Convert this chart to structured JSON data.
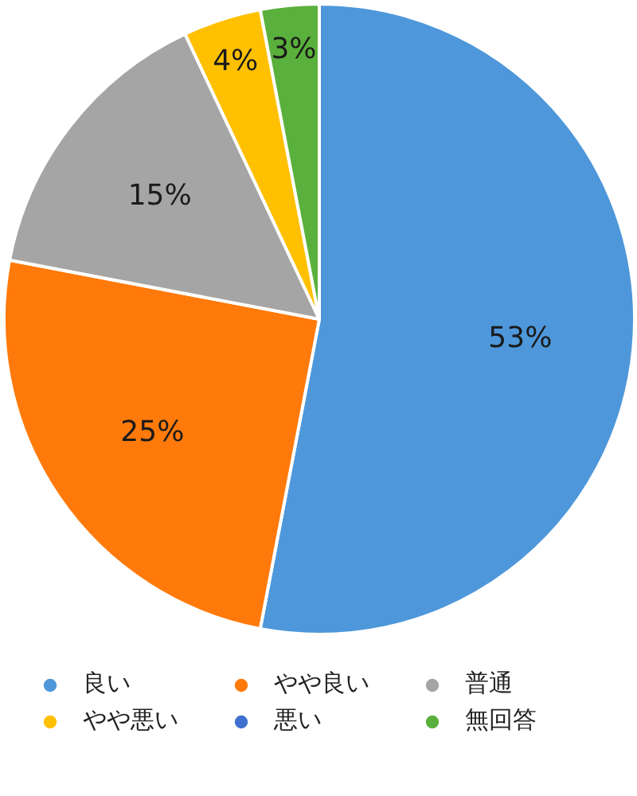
{
  "chart_data": {
    "type": "pie",
    "categories": [
      "良い",
      "やや良い",
      "普通",
      "やや悪い",
      "悪い",
      "無回答"
    ],
    "values": [
      53,
      25,
      15,
      4,
      0,
      3
    ],
    "value_labels": [
      "53%",
      "25%",
      "15%",
      "4%",
      null,
      "3%"
    ],
    "colors": [
      "#4e97da",
      "#ff7a0a",
      "#a5a5a5",
      "#ffc000",
      "#4070cf",
      "#5ab03c"
    ],
    "legend": "bottom"
  }
}
